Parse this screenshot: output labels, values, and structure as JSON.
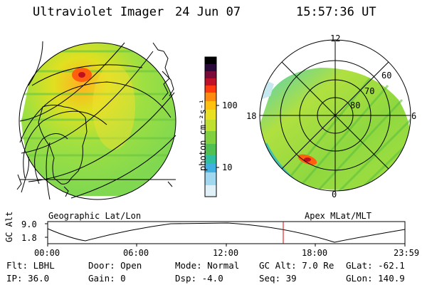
{
  "header": {
    "title": "Ultraviolet Imager",
    "date": "24 Jun 07",
    "time": "15:57:36 UT"
  },
  "colorbar": {
    "unit_label": "photon cm⁻²s⁻¹",
    "ticks": [
      "100",
      "10"
    ],
    "colors": [
      "#000000",
      "#2a0a3a",
      "#7a0a3a",
      "#c0102a",
      "#ff3a10",
      "#ff8a10",
      "#ffc010",
      "#e8e020",
      "#c0e030",
      "#80d040",
      "#50c050",
      "#30c0a0",
      "#40b0e0",
      "#a0d8f0",
      "#e0f0f8"
    ]
  },
  "left_panel": {
    "label": "Geographic Lat/Lon"
  },
  "right_panel": {
    "label": "Apex MLat/MLT",
    "mlt_labels": {
      "top": "12",
      "left": "18",
      "right": "6",
      "bottom": "0"
    },
    "lat_labels": [
      "60",
      "70",
      "80"
    ]
  },
  "altitude_plot": {
    "ylabel": "GC Alt",
    "yticks": [
      "9.0",
      "1.8"
    ],
    "xticks": [
      "00:00",
      "06:00",
      "12:00",
      "18:00",
      "23:59"
    ],
    "marker_time": "15:57"
  },
  "info": {
    "flt": "Flt: LBHL",
    "ip": "IP: 36.0",
    "door": "Door: Open",
    "gain": "Gain:  0",
    "mode": "Mode: Normal",
    "dsp": "Dsp:   -4.0",
    "gcalt": "GC Alt: 7.0 Re",
    "seq": "Seq: 39",
    "glat": "GLat: -62.1",
    "glon": "GLon: 140.9"
  }
}
